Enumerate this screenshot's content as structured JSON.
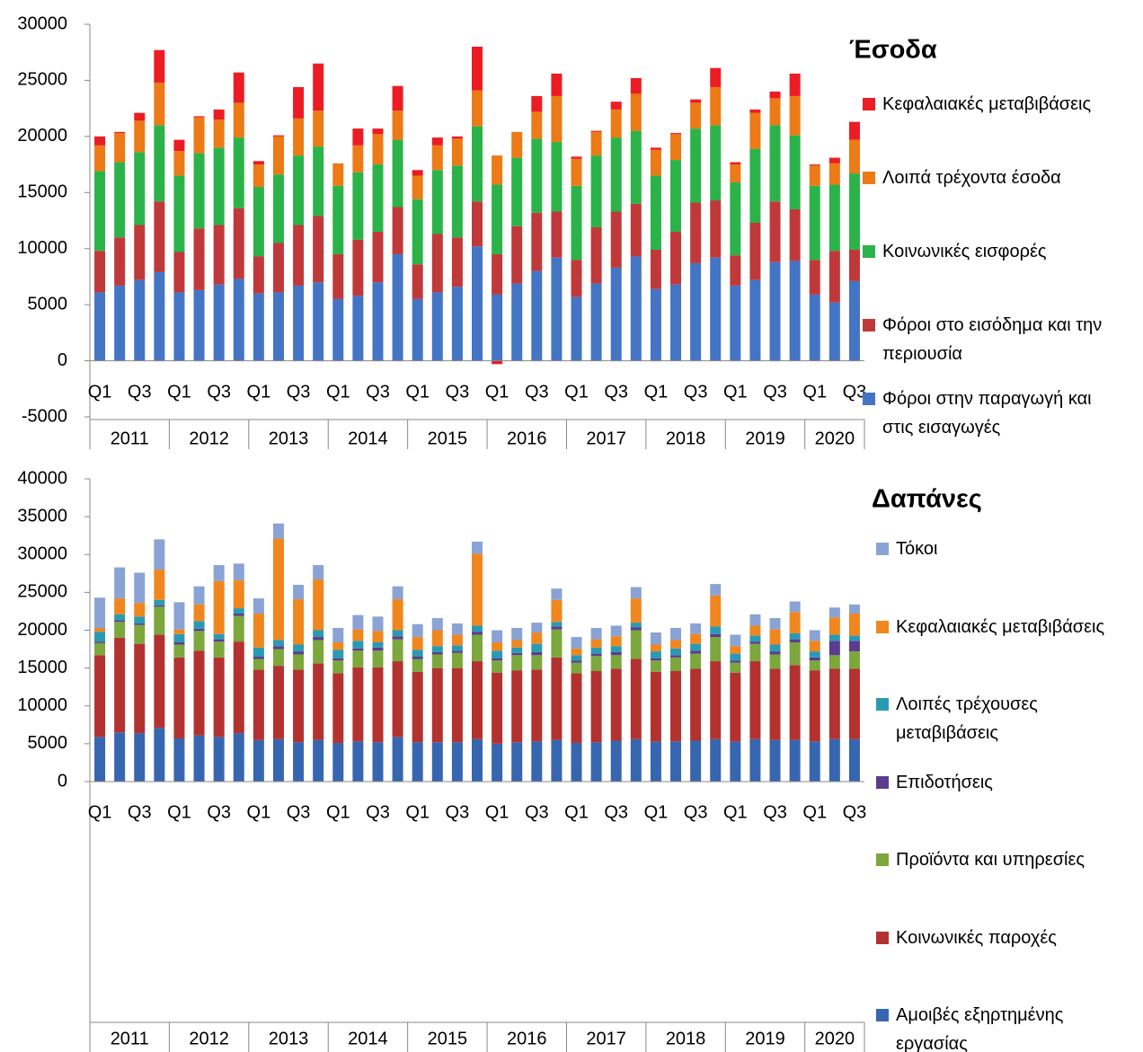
{
  "chart_data": [
    {
      "type": "bar",
      "stacked": true,
      "title": "Έσοδα",
      "categories": [
        "Q1",
        null,
        "Q3",
        null,
        "Q1",
        null,
        "Q3",
        null,
        "Q1",
        null,
        "Q3",
        null,
        "Q1",
        null,
        "Q3",
        null,
        "Q1",
        null,
        "Q3",
        null,
        "Q1",
        null,
        "Q3",
        null,
        "Q1",
        null,
        "Q3",
        null,
        "Q1",
        null,
        "Q3",
        null,
        "Q1",
        null,
        "Q3",
        null,
        "Q1",
        null,
        "Q3"
      ],
      "groups": [
        "2011",
        "2012",
        "2013",
        "2014",
        "2015",
        "2016",
        "2017",
        "2018",
        "2019",
        "2020"
      ],
      "ylim": [
        -5000,
        30000
      ],
      "yticks": [
        -5000,
        0,
        5000,
        10000,
        15000,
        20000,
        25000,
        30000
      ],
      "grid": false,
      "legend": "right",
      "series": [
        {
          "name": "Φόροι στην παραγωγή και στις εισαγωγές",
          "color": "#4474c4",
          "values": [
            6100,
            6700,
            7200,
            7900,
            6100,
            6300,
            6800,
            7300,
            6000,
            6100,
            6700,
            7000,
            5500,
            5800,
            7000,
            9500,
            5500,
            6100,
            6600,
            10200,
            5900,
            6900,
            8000,
            9200,
            5700,
            6900,
            8300,
            9300,
            6400,
            6800,
            8700,
            9200,
            6700,
            7200,
            8800,
            8900,
            5900,
            5200,
            7100
          ]
        },
        {
          "name": "Φόροι στο εισόδημα και την περιουσία",
          "color": "#c0393a",
          "values": [
            3700,
            4300,
            4900,
            6300,
            3600,
            5500,
            5300,
            6300,
            3300,
            4400,
            5400,
            5900,
            4000,
            5000,
            4500,
            4200,
            3100,
            5200,
            4400,
            4000,
            3600,
            5100,
            5200,
            4100,
            3300,
            5000,
            5000,
            4700,
            3500,
            4700,
            5400,
            5100,
            2700,
            5100,
            5400,
            4600,
            3100,
            4600,
            2800
          ]
        },
        {
          "name": "Κοινωνικές εισφορές",
          "color": "#2bb34a",
          "values": [
            7100,
            6700,
            6500,
            6800,
            6800,
            6700,
            6900,
            6300,
            6200,
            6100,
            6200,
            6200,
            6100,
            6000,
            6000,
            6000,
            5800,
            5700,
            6400,
            6700,
            6200,
            6100,
            6600,
            6200,
            6600,
            6400,
            6600,
            6500,
            6600,
            6400,
            6600,
            6700,
            6500,
            6600,
            6800,
            6600,
            6600,
            5900,
            6800
          ]
        },
        {
          "name": "Λοιπά τρέχοντα έσοδα",
          "color": "#ec7a16",
          "values": [
            2300,
            2600,
            2800,
            3800,
            2200,
            3200,
            2500,
            3100,
            2000,
            3400,
            3300,
            3200,
            2000,
            2400,
            2700,
            2600,
            2100,
            2200,
            2400,
            3200,
            2600,
            2300,
            2400,
            4100,
            2400,
            2100,
            2500,
            3300,
            2300,
            2300,
            2300,
            3400,
            1600,
            3200,
            2400,
            3500,
            1800,
            1900,
            3000
          ]
        },
        {
          "name": "Κεφαλαιακές μεταβιβάσεις",
          "color": "#ec1c24",
          "values": [
            800,
            100,
            700,
            2900,
            1000,
            100,
            900,
            2700,
            300,
            100,
            2800,
            4200,
            0,
            1500,
            500,
            2200,
            500,
            700,
            200,
            3900,
            -300,
            0,
            1400,
            2000,
            200,
            100,
            700,
            1400,
            200,
            100,
            300,
            1700,
            200,
            300,
            600,
            2000,
            100,
            500,
            1600
          ]
        }
      ]
    },
    {
      "type": "bar",
      "stacked": true,
      "title": "Δαπάνες",
      "categories": [
        "Q1",
        null,
        "Q3",
        null,
        "Q1",
        null,
        "Q3",
        null,
        "Q1",
        null,
        "Q3",
        null,
        "Q1",
        null,
        "Q3",
        null,
        "Q1",
        null,
        "Q3",
        null,
        "Q1",
        null,
        "Q3",
        null,
        "Q1",
        null,
        "Q3",
        null,
        "Q1",
        null,
        "Q3",
        null,
        "Q1",
        null,
        "Q3",
        null,
        "Q1",
        null,
        "Q3"
      ],
      "groups": [
        "2011",
        "2012",
        "2013",
        "2014",
        "2015",
        "2016",
        "2017",
        "2018",
        "2019",
        "2020"
      ],
      "ylim": [
        0,
        40000
      ],
      "yticks": [
        0,
        5000,
        10000,
        15000,
        20000,
        25000,
        30000,
        35000,
        40000
      ],
      "grid": false,
      "legend": "right",
      "series": [
        {
          "name": "Αμοιβές εξηρτημένης εργασίας",
          "color": "#3766b0",
          "values": [
            5900,
            6500,
            6400,
            7100,
            5700,
            6100,
            5900,
            6400,
            5500,
            5600,
            5200,
            5500,
            5100,
            5300,
            5200,
            5900,
            5200,
            5200,
            5200,
            5600,
            5000,
            5200,
            5300,
            5500,
            5100,
            5200,
            5400,
            5600,
            5300,
            5300,
            5400,
            5600,
            5300,
            5600,
            5500,
            5500,
            5300,
            5600,
            5600
          ]
        },
        {
          "name": "Κοινωνικές παροχές",
          "color": "#b3322f",
          "values": [
            10800,
            12500,
            11800,
            12300,
            10700,
            11200,
            10500,
            12100,
            9300,
            9700,
            9600,
            10100,
            9200,
            9800,
            9900,
            10000,
            9300,
            9800,
            9800,
            10300,
            9400,
            9500,
            9500,
            10900,
            9200,
            9400,
            9500,
            10600,
            9200,
            9300,
            9500,
            10300,
            9100,
            10300,
            9400,
            9900,
            9400,
            9300,
            9300
          ]
        },
        {
          "name": "Προϊόντα και υπηρεσίες",
          "color": "#7ba73d",
          "values": [
            1600,
            2100,
            2500,
            3700,
            1700,
            2600,
            2100,
            3400,
            1400,
            2200,
            2000,
            3100,
            1700,
            2200,
            2200,
            2900,
            1700,
            1800,
            2000,
            3500,
            1600,
            2000,
            1900,
            3700,
            1400,
            2000,
            1800,
            3800,
            1500,
            1800,
            2000,
            3200,
            1300,
            2300,
            1900,
            3000,
            1300,
            1800,
            2300
          ]
        },
        {
          "name": "Επιδοτήσεις",
          "color": "#5c3c8e",
          "values": [
            200,
            200,
            200,
            200,
            300,
            300,
            300,
            300,
            300,
            400,
            400,
            400,
            300,
            300,
            400,
            400,
            300,
            300,
            300,
            400,
            300,
            300,
            400,
            400,
            300,
            300,
            400,
            400,
            300,
            300,
            400,
            400,
            300,
            300,
            400,
            400,
            400,
            1900,
            1400
          ]
        },
        {
          "name": "Λοιπές τρέχουσες μεταβιβάσεις",
          "color": "#2a9ab3",
          "values": [
            1300,
            800,
            900,
            700,
            1100,
            1000,
            700,
            700,
            1200,
            800,
            900,
            900,
            1100,
            1000,
            700,
            800,
            900,
            800,
            700,
            800,
            1000,
            700,
            1100,
            600,
            700,
            800,
            800,
            600,
            900,
            900,
            900,
            1000,
            900,
            800,
            900,
            800,
            800,
            800,
            700
          ]
        },
        {
          "name": "Κεφαλαιακές μεταβιβάσεις",
          "color": "#f0861e",
          "values": [
            500,
            2100,
            1800,
            4000,
            600,
            2200,
            7000,
            3700,
            4500,
            13400,
            6000,
            6700,
            1000,
            1500,
            1500,
            4100,
            1700,
            2100,
            1400,
            9500,
            1100,
            1000,
            1500,
            2900,
            900,
            1100,
            1300,
            3200,
            900,
            1100,
            1300,
            4100,
            1000,
            1300,
            2000,
            2800,
            1400,
            2300,
            2900
          ]
        },
        {
          "name": "Τόκοι",
          "color": "#8aa3d4",
          "values": [
            4000,
            4100,
            4000,
            4000,
            3600,
            2400,
            2100,
            2200,
            2000,
            2000,
            1900,
            1900,
            1900,
            1900,
            1900,
            1700,
            1700,
            1600,
            1500,
            1600,
            1600,
            1600,
            1300,
            1500,
            1500,
            1500,
            1400,
            1500,
            1600,
            1600,
            1400,
            1500,
            1500,
            1500,
            1500,
            1400,
            1400,
            1300,
            1200
          ]
        }
      ]
    }
  ]
}
